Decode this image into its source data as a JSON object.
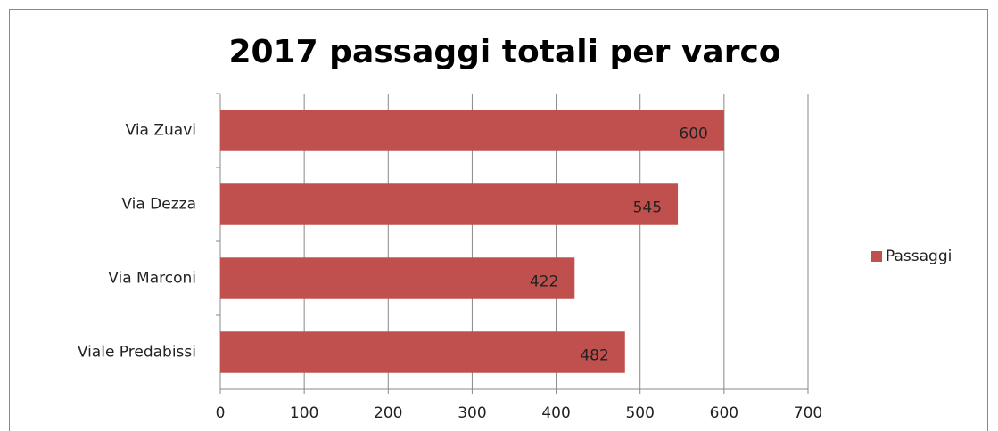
{
  "chart_data": {
    "type": "bar",
    "orientation": "horizontal",
    "title": "2017 passaggi totali per varco",
    "categories": [
      "Via Zuavi",
      "Via Dezza",
      "Via Marconi",
      "Viale Predabissi"
    ],
    "series": [
      {
        "name": "Passaggi",
        "color": "#c0504d",
        "values": [
          600,
          545,
          422,
          482
        ]
      }
    ],
    "xlim": [
      0,
      700
    ],
    "xticks": [
      0,
      100,
      200,
      300,
      400,
      500,
      600,
      700
    ],
    "grid": true,
    "legend": "right"
  }
}
